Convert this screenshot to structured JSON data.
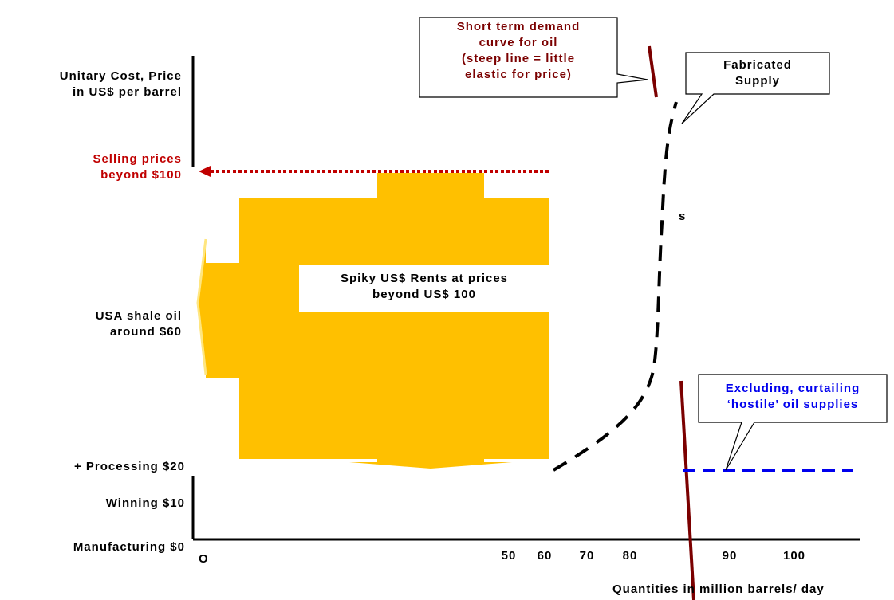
{
  "y_labels": {
    "axis_title_line1": "Unitary Cost, Price",
    "axis_title_line2": "in US$ per barrel",
    "selling_line1": "Selling prices",
    "selling_line2": "beyond $100",
    "shale_line1": "USA shale oil",
    "shale_line2": "around $60",
    "processing": "+ Processing $20",
    "winning": "Winning $10",
    "manufacturing": "Manufacturing $0"
  },
  "x_labels": {
    "origin": "O",
    "ticks": [
      "50",
      "60",
      "70",
      "80",
      "90",
      "100"
    ],
    "axis_title": "Quantities in million barrels/ day"
  },
  "callouts": {
    "demand_line1": "Short term demand",
    "demand_line2": "curve for oil",
    "demand_line3": "(steep line = little",
    "demand_line4": "elastic for price)",
    "supply_line1": "Fabricated",
    "supply_line2": "Supply",
    "rents_line1": "Spiky US$ Rents at prices",
    "rents_line2": "beyond US$ 100",
    "excluding_line1": "Excluding, curtailing",
    "excluding_line2": "‘hostile’ oil supplies",
    "fragment": "s"
  },
  "colors": {
    "dark_red": "#7b0000",
    "red": "#c00000",
    "blue": "#0000ee",
    "gold": "#ffc000",
    "black": "#000000"
  }
}
